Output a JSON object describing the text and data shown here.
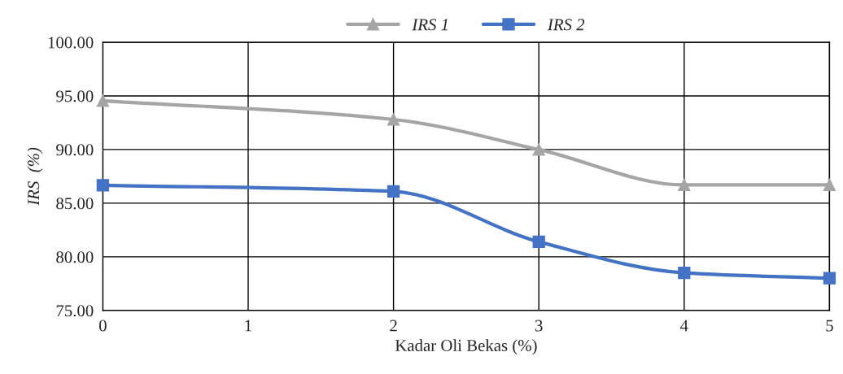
{
  "chart_data": {
    "type": "line",
    "xlabel": "Kadar Oli Bekas (%)",
    "ylabel": "IRS  (%)",
    "x": [
      0,
      2,
      3,
      4,
      5
    ],
    "series": [
      {
        "name": "IRS 1",
        "color": "#a5a5a5",
        "marker": "triangle",
        "values": [
          94.55,
          92.8,
          90.0,
          86.7,
          86.7
        ]
      },
      {
        "name": "IRS 2",
        "color": "#4472c4",
        "marker": "square",
        "values": [
          86.67,
          86.1,
          81.4,
          78.5,
          78.0
        ]
      }
    ],
    "xlim": [
      0,
      5
    ],
    "xticks": [
      0,
      1,
      2,
      3,
      4,
      5
    ],
    "ylim": [
      75,
      100
    ],
    "yticks": [
      {
        "value": 75,
        "label": "75.00"
      },
      {
        "value": 80,
        "label": "80.00"
      },
      {
        "value": 85,
        "label": "85.00"
      },
      {
        "value": 90,
        "label": "90.00"
      },
      {
        "value": 95,
        "label": "95.00"
      },
      {
        "value": 100,
        "label": "100.00"
      }
    ],
    "grid": true,
    "legend": "top",
    "line_style": "solid"
  }
}
